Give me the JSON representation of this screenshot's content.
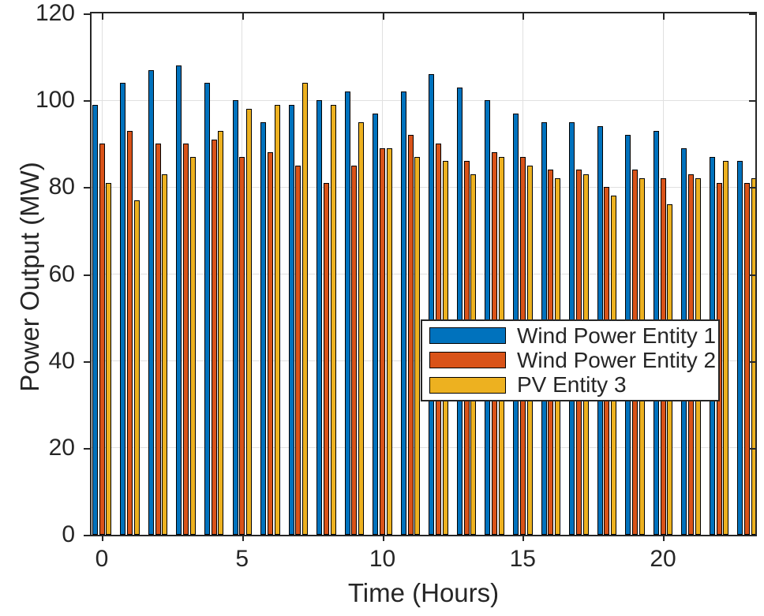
{
  "chart_data": {
    "type": "bar",
    "title": "",
    "xlabel": "Time (Hours)",
    "ylabel": "Power Output (MW)",
    "x": [
      0,
      1,
      2,
      3,
      4,
      5,
      6,
      7,
      8,
      9,
      10,
      11,
      12,
      13,
      14,
      15,
      16,
      17,
      18,
      19,
      20,
      21,
      22,
      23
    ],
    "series": [
      {
        "name": "Wind Power Entity 1",
        "color": "#0072BD",
        "values": [
          99,
          104,
          107,
          108,
          104,
          100,
          95,
          99,
          100,
          102,
          97,
          102,
          106,
          103,
          100,
          97,
          95,
          95,
          94,
          92,
          93,
          89,
          87,
          86
        ]
      },
      {
        "name": "Wind Power Entity 2",
        "color": "#D95319",
        "values": [
          90,
          93,
          90,
          90,
          91,
          87,
          88,
          85,
          81,
          85,
          89,
          92,
          90,
          86,
          88,
          87,
          84,
          84,
          80,
          84,
          82,
          83,
          81,
          81
        ]
      },
      {
        "name": "PV Entity 3",
        "color": "#EDB120",
        "values": [
          81,
          77,
          83,
          87,
          93,
          98,
          99,
          104,
          99,
          95,
          89,
          87,
          86,
          83,
          87,
          85,
          82,
          83,
          78,
          82,
          76,
          82,
          86,
          82
        ]
      }
    ],
    "ylim": [
      0,
      120
    ],
    "yticks": [
      0,
      20,
      40,
      60,
      80,
      100,
      120
    ],
    "xticks": [
      0,
      5,
      10,
      15,
      20
    ],
    "grid": true,
    "legend_position": "inside-right-middle",
    "bar_edge_color": "#000000",
    "grid_color": "#e0e0e0",
    "axis_color": "#262626",
    "background_color": "#ffffff"
  }
}
